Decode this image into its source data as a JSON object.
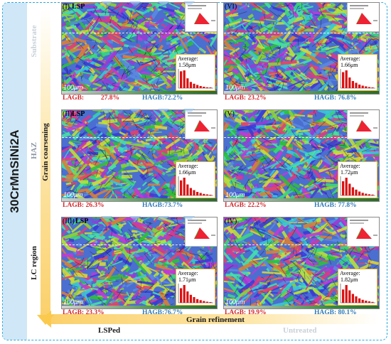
{
  "material": "30CrMnSiNi2A",
  "regions": {
    "substrate": "Substrate",
    "haz": "HAZ",
    "lc_region": "LC region"
  },
  "axes": {
    "vertical": "Grain coarsening",
    "horizontal": "Grain refinement",
    "left_end": "LSPed",
    "right_end": "Untreated"
  },
  "colors": {
    "lagb": "#d6252a",
    "hagb": "#2f7ab8",
    "arrow": "#fbc94c",
    "inset_border": "#e8b430",
    "frame": "#29a8e0"
  },
  "panels": [
    {
      "id": "I",
      "label": "(I)",
      "lsp": "LSP",
      "scale": "100μm",
      "avg_label": "Average:",
      "avg_value": "1.58μm",
      "lagb_label": "LAGB:",
      "lagb": "27.8%",
      "hagb_label": "HAGB:",
      "hagb": "72.2%",
      "hist": [
        0.95,
        1,
        0.55,
        0.35,
        0.25,
        0.18,
        0.12,
        0.08,
        0.05,
        0.04
      ]
    },
    {
      "id": "VI",
      "label": "(VI)",
      "lsp": "",
      "scale": "100μm",
      "avg_label": "Average:",
      "avg_value": "1.66μm",
      "lagb_label": "LAGB:",
      "lagb": "23.2%",
      "hagb_label": "HAGB:",
      "hagb": "76.8%",
      "hist": [
        0.9,
        1,
        0.6,
        0.4,
        0.3,
        0.2,
        0.14,
        0.1,
        0.06,
        0.04
      ]
    },
    {
      "id": "II",
      "label": "(II)",
      "lsp": "LSP",
      "scale": "100μm",
      "avg_label": "Average:",
      "avg_value": "1.66μm",
      "lagb_label": "LAGB:",
      "lagb": "26.3%",
      "hagb_label": "HAGB:",
      "hagb": "73.7%",
      "hist": [
        0.85,
        1,
        0.62,
        0.42,
        0.3,
        0.2,
        0.14,
        0.09,
        0.06,
        0.04
      ]
    },
    {
      "id": "V",
      "label": "(V)",
      "lsp": "",
      "scale": "100μm",
      "avg_label": "Average:",
      "avg_value": "1.72μm",
      "lagb_label": "LAGB:",
      "lagb": "22.2%",
      "hagb_label": "HAGB:",
      "hagb": "77.8%",
      "hist": [
        0.8,
        1,
        0.66,
        0.46,
        0.33,
        0.22,
        0.15,
        0.1,
        0.07,
        0.05
      ]
    },
    {
      "id": "III",
      "label": "(III)",
      "lsp": "LSP",
      "scale": "100μm",
      "avg_label": "Average:",
      "avg_value": "1.71μm",
      "lagb_label": "LAGB:",
      "lagb": "23.3%",
      "hagb_label": "HAGB:",
      "hagb": "76.7%",
      "hist": [
        0.82,
        1,
        0.64,
        0.45,
        0.32,
        0.21,
        0.15,
        0.1,
        0.06,
        0.04
      ]
    },
    {
      "id": "IV",
      "label": "(IV)",
      "lsp": "",
      "scale": "100μm",
      "avg_label": "Average:",
      "avg_value": "1.82μm",
      "lagb_label": "LAGB:",
      "lagb": "19.9%",
      "hagb_label": "HAGB:",
      "hagb": "80.1%",
      "hist": [
        0.75,
        1,
        0.7,
        0.5,
        0.36,
        0.25,
        0.17,
        0.12,
        0.08,
        0.05
      ]
    }
  ]
}
